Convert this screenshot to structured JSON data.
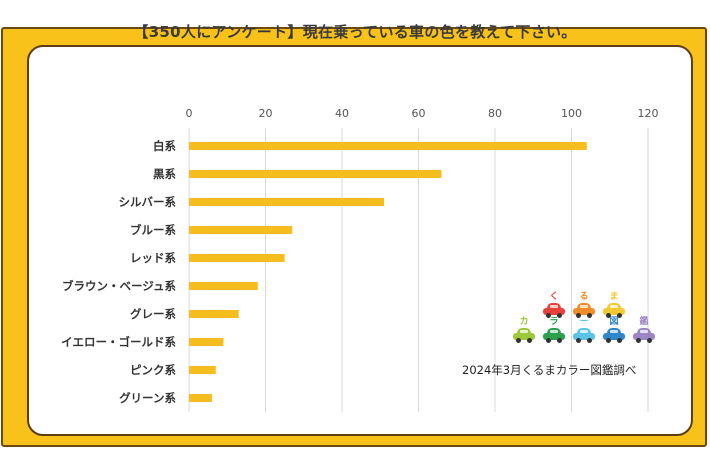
{
  "chart_data": {
    "type": "bar",
    "orientation": "horizontal",
    "title": "【350人にアンケート】現在乗っている車の色を教えて下さい。",
    "categories": [
      "白系",
      "黒系",
      "シルバー系",
      "ブルー系",
      "レッド系",
      "ブラウン・ベージュ系",
      "グレー系",
      "イエロー・ゴールド系",
      "ピンク系",
      "グリーン系"
    ],
    "values": [
      104,
      66,
      51,
      27,
      25,
      18,
      13,
      9,
      7,
      6
    ],
    "xlim": [
      0,
      120
    ],
    "xticks": [
      0,
      20,
      40,
      60,
      80,
      100,
      120
    ],
    "xtick_labels": [
      "0",
      "20",
      "40",
      "60",
      "80",
      "100",
      "120"
    ],
    "xlabel": "",
    "ylabel": "",
    "x_axis_position": "top",
    "grid": true,
    "bar_color": "#F5BE1E",
    "legend": null,
    "source": "2024年3月くるまカラー図鑑調べ"
  },
  "logo": {
    "top_row": [
      {
        "char": "く",
        "color": "#E8413C"
      },
      {
        "char": "る",
        "color": "#F28C28"
      },
      {
        "char": "ま",
        "color": "#F2C930"
      }
    ],
    "bottom_row": [
      {
        "char": "カ",
        "color": "#9CC83A"
      },
      {
        "char": "ラ",
        "color": "#2E9E4F"
      },
      {
        "char": "ー",
        "color": "#5BC3E6"
      },
      {
        "char": "図",
        "color": "#2F86C8"
      },
      {
        "char": "鑑",
        "color": "#9B86C4"
      }
    ]
  },
  "colors": {
    "frame": "#F8C21A",
    "frame_border": "#6B4A12",
    "panel": "#FFFFFF"
  }
}
